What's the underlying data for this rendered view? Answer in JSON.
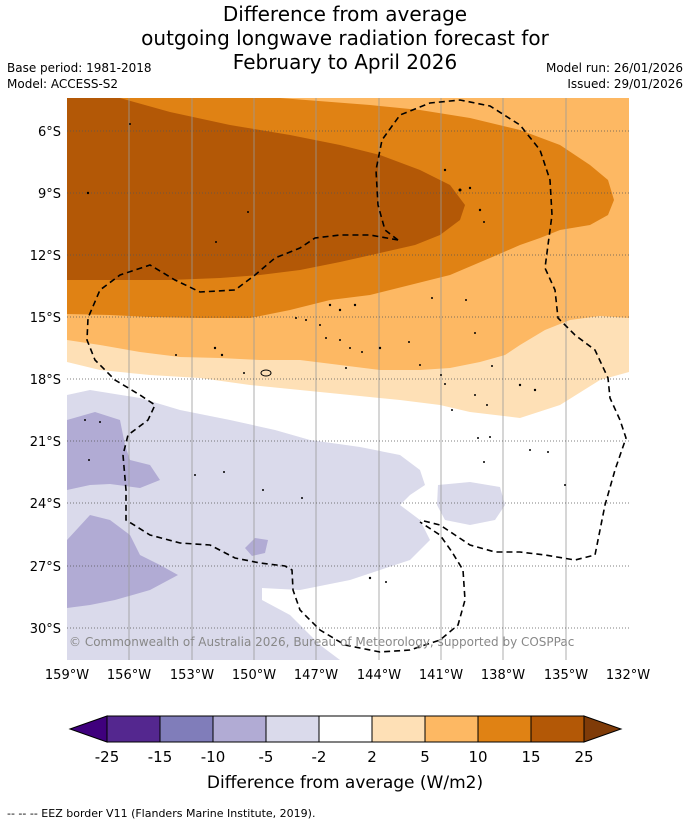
{
  "title": {
    "line1": "Difference from average",
    "line2": "outgoing longwave radiation forecast for",
    "line3": "February to April 2026"
  },
  "meta": {
    "base_period": "Base period: 1981-2018",
    "model": "Model: ACCESS-S2",
    "model_run": "Model run: 26/01/2026",
    "issued": "Issued: 29/01/2026"
  },
  "map": {
    "lon_labels": [
      "159°W",
      "156°W",
      "153°W",
      "150°W",
      "147°W",
      "144°W",
      "141°W",
      "138°W",
      "135°W",
      "132°W"
    ],
    "lat_labels": [
      "6°S",
      "9°S",
      "12°S",
      "15°S",
      "18°S",
      "21°S",
      "24°S",
      "27°S",
      "30°S"
    ],
    "copyright": "© Commonwealth of Australia 2026, Bureau of Meteorology, supported by COSPPac"
  },
  "colorbar": {
    "ticks": [
      "-25",
      "-15",
      "-10",
      "-5",
      "-2",
      "2",
      "5",
      "10",
      "15",
      "25"
    ],
    "label": "Difference from average (W/m2)",
    "colors": [
      "#3f007d",
      "#54278f",
      "#807dba",
      "#b1abd4",
      "#dadaeb",
      "#ffffff",
      "#fee0b6",
      "#fdb863",
      "#e08214",
      "#b35806",
      "#7f3b08"
    ]
  },
  "colors": {
    "deep_orange": "#b35806",
    "orange": "#e08214",
    "light_orange": "#fdb863",
    "pale_orange": "#fee0b6",
    "pale_purple": "#dadaeb",
    "light_purple": "#b1abd4"
  },
  "footer": "--  --  -- EEZ border V11 (Flanders Marine Institute, 2019)."
}
